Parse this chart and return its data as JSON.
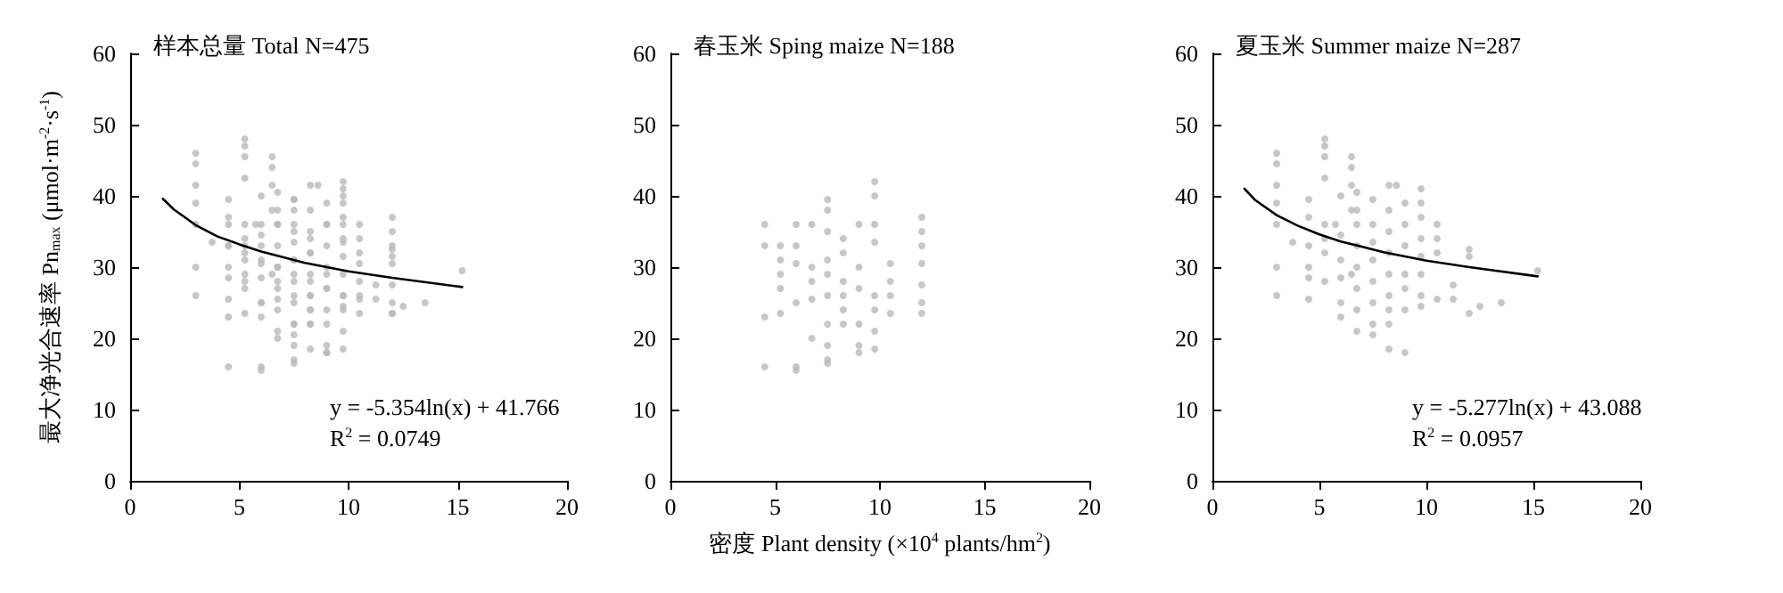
{
  "chart_data": [
    {
      "type": "scatter",
      "title": "样本总量 Total N=475",
      "ylabel": "最大净光合速率 Pn$_{max}$ (μmol·m$^{-2}$·s$^{-1}$)",
      "xlim": [
        0,
        20
      ],
      "ylim": [
        0,
        60
      ],
      "xticks": [
        0,
        5,
        10,
        15,
        20
      ],
      "yticks": [
        0,
        10,
        20,
        30,
        40,
        50,
        60
      ],
      "marker": "circle",
      "annotations": [
        "y = -5.354ln(x) + 41.766",
        "R$^{2}$ = 0.0749"
      ],
      "series": [
        {
          "type": "scatter",
          "color": "#b9b9b9",
          "x": [
            4.5,
            4.5,
            4.5,
            4.5,
            5.25,
            5.25,
            5.25,
            5.25,
            5.25,
            6,
            6,
            6,
            6,
            6,
            6,
            6.75,
            6.75,
            6.75,
            6.75,
            6.75,
            7.5,
            7.5,
            7.5,
            7.5,
            7.5,
            7.5,
            7.5,
            7.5,
            7.5,
            7.5,
            8.25,
            8.25,
            8.25,
            8.25,
            8.25,
            8.25,
            9,
            9,
            9,
            9,
            9,
            9,
            9.75,
            9.75,
            9.75,
            9.75,
            9.75,
            9.75,
            9.75,
            9.75,
            10.5,
            10.5,
            10.5,
            10.5,
            12,
            12,
            12,
            12,
            12,
            12,
            12,
            3,
            3,
            3,
            3,
            3,
            3,
            3,
            3.75,
            4.5,
            4.5,
            4.5,
            4.5,
            4.5,
            4.5,
            5.25,
            5.25,
            5.25,
            5.25,
            5.25,
            5.25,
            5.25,
            5.25,
            5.75,
            6,
            6,
            6,
            6,
            6,
            6,
            6.5,
            6.5,
            6.5,
            6.5,
            6.5,
            6.75,
            6.75,
            6.75,
            6.75,
            6.75,
            6.75,
            6.75,
            6.75,
            7.5,
            7.5,
            7.5,
            7.5,
            7.5,
            7.5,
            7.5,
            7.5,
            8.25,
            8.25,
            8.25,
            8.25,
            8.25,
            8.25,
            8.25,
            8.25,
            8.25,
            8.6,
            9,
            9,
            9,
            9,
            9,
            9,
            9,
            9.75,
            9.75,
            9.75,
            9.75,
            9.75,
            9.75,
            9.75,
            9.75,
            10.5,
            10.5,
            10.5,
            10.5,
            11.25,
            11.25,
            12,
            12,
            12,
            12.5,
            13.5,
            15.2
          ],
          "values": [
            36,
            33,
            23,
            16,
            33,
            31,
            29,
            27,
            23.5,
            36,
            33,
            30.5,
            25,
            16,
            15.5,
            36,
            30,
            28,
            25.5,
            20,
            39.5,
            38,
            35,
            31,
            29,
            26,
            22,
            19,
            17,
            16.5,
            34,
            32,
            28,
            26,
            24,
            22,
            36,
            30,
            27,
            22,
            19,
            18,
            42,
            40,
            36,
            33.5,
            26,
            24,
            21,
            18.5,
            30.5,
            28,
            26,
            23.5,
            37,
            35,
            33,
            30.5,
            27.5,
            25,
            23.5,
            46,
            44.5,
            41.5,
            39,
            36,
            30,
            26,
            33.5,
            39.5,
            37,
            33,
            30,
            28.5,
            25.5,
            48,
            47,
            45.5,
            42.5,
            36,
            34,
            32,
            28,
            36,
            40,
            34.5,
            31,
            28.5,
            25,
            23,
            45.5,
            44,
            41.5,
            38,
            29,
            40.5,
            38,
            36,
            33,
            30,
            27,
            24,
            21,
            39.5,
            36,
            33.5,
            31,
            28,
            25,
            22,
            20.5,
            41.5,
            38,
            35,
            32,
            29,
            26,
            24,
            22,
            18.5,
            41.5,
            39,
            36,
            33,
            29,
            27,
            24,
            18,
            41,
            39,
            37,
            34,
            31.5,
            29,
            26,
            24.5,
            36,
            34,
            32,
            25.5,
            27.5,
            25.5,
            32.5,
            31.5,
            23.5,
            24.5,
            25,
            29.5
          ]
        },
        {
          "type": "line",
          "color": "#000000",
          "marker": "none",
          "line_style": "solid",
          "x": [
            1.5,
            2,
            3,
            4,
            5,
            6,
            8,
            10,
            12,
            15.2
          ],
          "values": [
            39.6,
            38.1,
            35.9,
            34.3,
            33.2,
            32.2,
            30.6,
            29.4,
            28.5,
            27.2
          ]
        }
      ]
    },
    {
      "type": "scatter",
      "title": "春玉米 Sping maize N=188",
      "xlabel": "密度 Plant density (×10$^{4}$ plants/hm$^{2}$)",
      "xlim": [
        0,
        20
      ],
      "ylim": [
        0,
        60
      ],
      "xticks": [
        0,
        5,
        10,
        15,
        20
      ],
      "yticks": [
        0,
        10,
        20,
        30,
        40,
        50,
        60
      ],
      "marker": "circle",
      "series": [
        {
          "type": "scatter",
          "color": "#b9b9b9",
          "x": [
            4.5,
            4.5,
            4.5,
            4.5,
            5.25,
            5.25,
            5.25,
            5.25,
            5.25,
            6,
            6,
            6,
            6,
            6,
            6,
            6.75,
            6.75,
            6.75,
            6.75,
            6.75,
            7.5,
            7.5,
            7.5,
            7.5,
            7.5,
            7.5,
            7.5,
            7.5,
            7.5,
            7.5,
            8.25,
            8.25,
            8.25,
            8.25,
            8.25,
            8.25,
            9,
            9,
            9,
            9,
            9,
            9,
            9.75,
            9.75,
            9.75,
            9.75,
            9.75,
            9.75,
            9.75,
            9.75,
            10.5,
            10.5,
            10.5,
            10.5,
            12,
            12,
            12,
            12,
            12,
            12,
            12
          ],
          "values": [
            36,
            33,
            23,
            16,
            33,
            31,
            29,
            27,
            23.5,
            36,
            33,
            30.5,
            25,
            16,
            15.5,
            36,
            30,
            28,
            25.5,
            20,
            39.5,
            38,
            35,
            31,
            29,
            26,
            22,
            19,
            17,
            16.5,
            34,
            32,
            28,
            26,
            24,
            22,
            36,
            30,
            27,
            22,
            19,
            18,
            42,
            40,
            36,
            33.5,
            26,
            24,
            21,
            18.5,
            30.5,
            28,
            26,
            23.5,
            37,
            35,
            33,
            30.5,
            27.5,
            25,
            23.5
          ]
        }
      ]
    },
    {
      "type": "scatter",
      "title": "夏玉米 Summer maize N=287",
      "xlim": [
        0,
        20
      ],
      "ylim": [
        0,
        60
      ],
      "xticks": [
        0,
        5,
        10,
        15,
        20
      ],
      "yticks": [
        0,
        10,
        20,
        30,
        40,
        50,
        60
      ],
      "marker": "circle",
      "annotations": [
        "y = -5.277ln(x) + 43.088",
        "R$^{2}$ = 0.0957"
      ],
      "series": [
        {
          "type": "scatter",
          "color": "#b9b9b9",
          "x": [
            3,
            3,
            3,
            3,
            3,
            3,
            3,
            3.75,
            4.5,
            4.5,
            4.5,
            4.5,
            4.5,
            4.5,
            5.25,
            5.25,
            5.25,
            5.25,
            5.25,
            5.25,
            5.25,
            5.25,
            5.75,
            6,
            6,
            6,
            6,
            6,
            6,
            6.5,
            6.5,
            6.5,
            6.5,
            6.5,
            6.75,
            6.75,
            6.75,
            6.75,
            6.75,
            6.75,
            6.75,
            6.75,
            7.5,
            7.5,
            7.5,
            7.5,
            7.5,
            7.5,
            7.5,
            7.5,
            8.25,
            8.25,
            8.25,
            8.25,
            8.25,
            8.25,
            8.25,
            8.25,
            8.25,
            8.6,
            9,
            9,
            9,
            9,
            9,
            9,
            9,
            9.75,
            9.75,
            9.75,
            9.75,
            9.75,
            9.75,
            9.75,
            9.75,
            10.5,
            10.5,
            10.5,
            10.5,
            11.25,
            11.25,
            12,
            12,
            12,
            12.5,
            13.5,
            15.2
          ],
          "values": [
            46,
            44.5,
            41.5,
            39,
            36,
            30,
            26,
            33.5,
            39.5,
            37,
            33,
            30,
            28.5,
            25.5,
            48,
            47,
            45.5,
            42.5,
            36,
            34,
            32,
            28,
            36,
            40,
            34.5,
            31,
            28.5,
            25,
            23,
            45.5,
            44,
            41.5,
            38,
            29,
            40.5,
            38,
            36,
            33,
            30,
            27,
            24,
            21,
            39.5,
            36,
            33.5,
            31,
            28,
            25,
            22,
            20.5,
            41.5,
            38,
            35,
            32,
            29,
            26,
            24,
            22,
            18.5,
            41.5,
            39,
            36,
            33,
            29,
            27,
            24,
            18,
            41,
            39,
            37,
            34,
            31.5,
            29,
            26,
            24.5,
            36,
            34,
            32,
            25.5,
            27.5,
            25.5,
            32.5,
            31.5,
            23.5,
            24.5,
            25,
            29.5
          ]
        },
        {
          "type": "line",
          "color": "#000000",
          "marker": "none",
          "line_style": "solid",
          "x": [
            1.5,
            2,
            3,
            4,
            5,
            6,
            8,
            10,
            12,
            15.2
          ],
          "values": [
            41,
            39.4,
            37.3,
            35.8,
            34.6,
            33.6,
            32.1,
            30.9,
            30,
            28.7
          ]
        }
      ]
    }
  ]
}
